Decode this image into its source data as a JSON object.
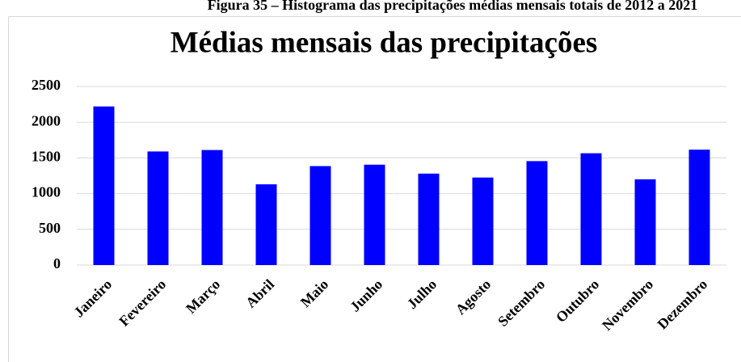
{
  "caption": "Figura 35 – Histograma das precipitações médias mensais totais de 2012 a 2021",
  "chart_data": {
    "type": "bar",
    "title": "Médias mensais das precipitações",
    "categories": [
      "Janeiro",
      "Fevereiro",
      "Março",
      "Abril",
      "Maio",
      "Junho",
      "Julho",
      "Agosto",
      "Setembro",
      "Outubro",
      "Novembro",
      "Dezembro"
    ],
    "values": [
      2220,
      1590,
      1610,
      1130,
      1385,
      1405,
      1280,
      1225,
      1455,
      1565,
      1200,
      1615
    ],
    "color": "#0000ff",
    "ylim": [
      0,
      2500
    ],
    "yticks": [
      0,
      500,
      1000,
      1500,
      2000,
      2500
    ],
    "grid": true
  }
}
